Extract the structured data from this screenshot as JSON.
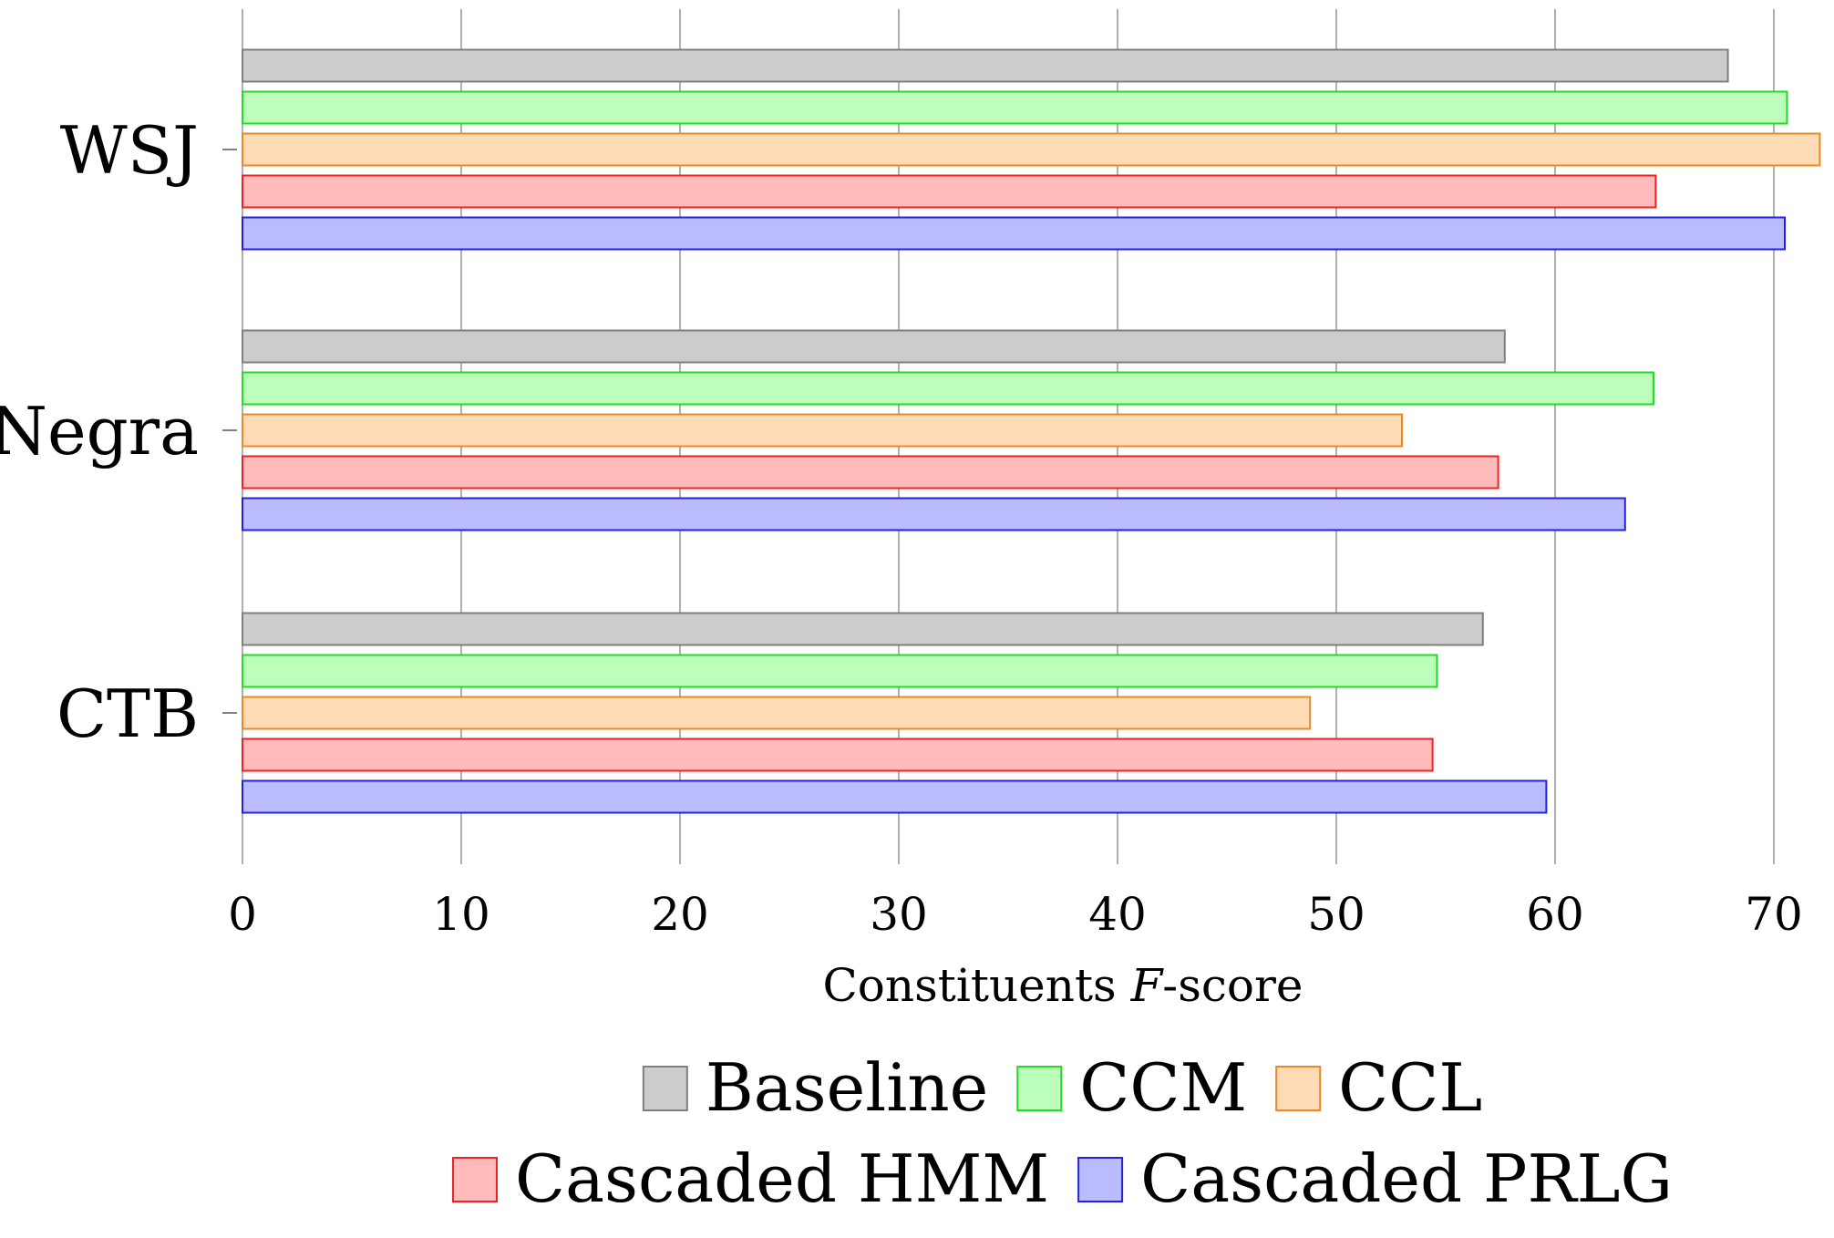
{
  "chart_data": {
    "type": "bar",
    "orientation": "horizontal",
    "categories": [
      "WSJ",
      "Negra",
      "CTB"
    ],
    "xlabel_main": "Constituents ",
    "xlabel_italic": "F",
    "xlabel_rest": "-score",
    "ylabel": "",
    "xlim": [
      0,
      72
    ],
    "xticks": [
      0,
      10,
      20,
      30,
      40,
      50,
      60,
      70
    ],
    "grid": "vertical",
    "legend_position": "bottom",
    "series": [
      {
        "name": "Baseline",
        "fill": "#cccccc",
        "stroke": "#7f7f7f",
        "values": [
          67.9,
          57.7,
          56.7
        ]
      },
      {
        "name": "CCM",
        "fill": "#bbffbb",
        "stroke": "#22dd22",
        "values": [
          70.6,
          64.5,
          54.6
        ]
      },
      {
        "name": "CCL",
        "fill": "#ffdcb6",
        "stroke": "#ee8822",
        "values": [
          72.1,
          53.0,
          48.8
        ]
      },
      {
        "name": "Cascaded HMM",
        "fill": "#ffbbbb",
        "stroke": "#ee2222",
        "values": [
          64.6,
          57.4,
          54.4
        ]
      },
      {
        "name": "Cascaded PRLG",
        "fill": "#bbbbff",
        "stroke": "#2222dd",
        "values": [
          70.5,
          63.2,
          59.6
        ]
      }
    ]
  }
}
